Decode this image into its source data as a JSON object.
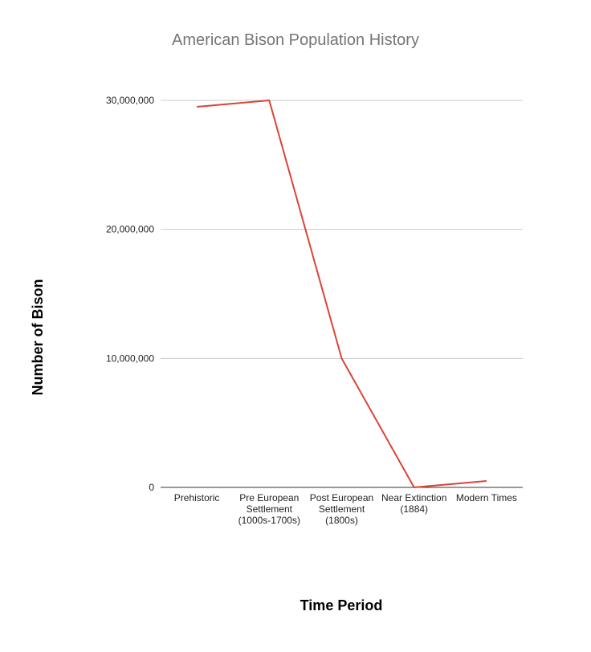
{
  "chart_data": {
    "type": "line",
    "title": "American Bison Population History",
    "xlabel": "Time Period",
    "ylabel": "Number of Bison",
    "categories": [
      [
        "Prehistoric"
      ],
      [
        "Pre European",
        "Settlement",
        "(1000s-1700s)"
      ],
      [
        "Post European",
        "Settlement",
        "(1800s)"
      ],
      [
        "Near Extinction",
        "(1884)"
      ],
      [
        "Modern Times"
      ]
    ],
    "series": [
      {
        "values": [
          29500000,
          30000000,
          10000000,
          0,
          500000
        ],
        "color": "#db4437"
      }
    ],
    "ylim": [
      0,
      30000000
    ],
    "yticks": [
      0,
      10000000,
      20000000,
      30000000
    ],
    "ytick_labels": [
      "0",
      "10,000,000",
      "20,000,000",
      "30,000,000"
    ],
    "grid": true,
    "legend": "none"
  }
}
